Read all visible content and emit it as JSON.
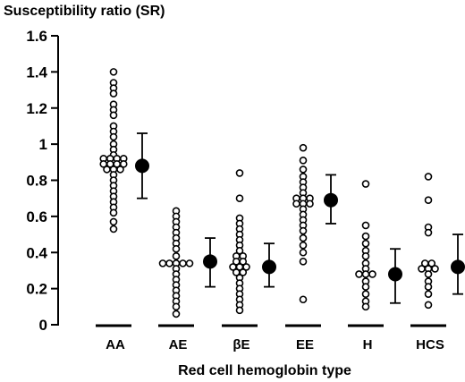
{
  "chart_data": {
    "type": "scatter",
    "title": "Susceptibility ratio (SR)",
    "xlabel": "Red cell hemoglobin type",
    "ylabel": "",
    "ylim": [
      0,
      1.6
    ],
    "yticks": [
      "0",
      "0.2",
      "0.4",
      "0.6",
      "0.8",
      "1",
      "1.2",
      "1.4",
      "1.6"
    ],
    "categories": [
      "AA",
      "AE",
      "βE",
      "EE",
      "H",
      "HCS"
    ],
    "groups": [
      {
        "label": "AA",
        "points": [
          1.4,
          1.34,
          1.31,
          1.28,
          1.22,
          1.19,
          1.16,
          1.1,
          1.07,
          1.04,
          1.0,
          0.97,
          0.94,
          0.92,
          0.92,
          0.92,
          0.92,
          0.89,
          0.89,
          0.89,
          0.89,
          0.86,
          0.86,
          0.86,
          0.83,
          0.8,
          0.77,
          0.74,
          0.71,
          0.68,
          0.65,
          0.62,
          0.57,
          0.53
        ],
        "mean": 0.88,
        "sd_low": 0.7,
        "sd_high": 1.06
      },
      {
        "label": "AE",
        "points": [
          0.63,
          0.6,
          0.57,
          0.54,
          0.51,
          0.48,
          0.45,
          0.42,
          0.38,
          0.34,
          0.34,
          0.34,
          0.34,
          0.34,
          0.31,
          0.28,
          0.25,
          0.22,
          0.19,
          0.16,
          0.13,
          0.1,
          0.06
        ],
        "mean": 0.35,
        "sd_low": 0.21,
        "sd_high": 0.48
      },
      {
        "label": "βE",
        "points": [
          0.84,
          0.7,
          0.59,
          0.56,
          0.53,
          0.5,
          0.47,
          0.44,
          0.41,
          0.38,
          0.38,
          0.35,
          0.35,
          0.32,
          0.32,
          0.32,
          0.29,
          0.29,
          0.26,
          0.23,
          0.2,
          0.17,
          0.14,
          0.11,
          0.08
        ],
        "mean": 0.32,
        "sd_low": 0.21,
        "sd_high": 0.45
      },
      {
        "label": "EE",
        "points": [
          0.98,
          0.91,
          0.86,
          0.82,
          0.79,
          0.76,
          0.73,
          0.7,
          0.7,
          0.7,
          0.67,
          0.67,
          0.67,
          0.64,
          0.61,
          0.58,
          0.55,
          0.52,
          0.48,
          0.44,
          0.4,
          0.35,
          0.14
        ],
        "mean": 0.69,
        "sd_low": 0.56,
        "sd_high": 0.83
      },
      {
        "label": "H",
        "points": [
          0.78,
          0.55,
          0.49,
          0.45,
          0.41,
          0.38,
          0.34,
          0.31,
          0.28,
          0.28,
          0.28,
          0.24,
          0.21,
          0.17,
          0.13,
          0.1
        ],
        "mean": 0.28,
        "sd_low": 0.12,
        "sd_high": 0.42
      },
      {
        "label": "HCS",
        "points": [
          0.82,
          0.69,
          0.54,
          0.51,
          0.34,
          0.34,
          0.31,
          0.31,
          0.31,
          0.28,
          0.24,
          0.21,
          0.17,
          0.11
        ],
        "mean": 0.32,
        "sd_low": 0.17,
        "sd_high": 0.5
      }
    ],
    "colors": {
      "points_fill": "#ffffff",
      "points_stroke": "#000000",
      "mean_fill": "#000000"
    },
    "grid": false,
    "legend": "none"
  }
}
